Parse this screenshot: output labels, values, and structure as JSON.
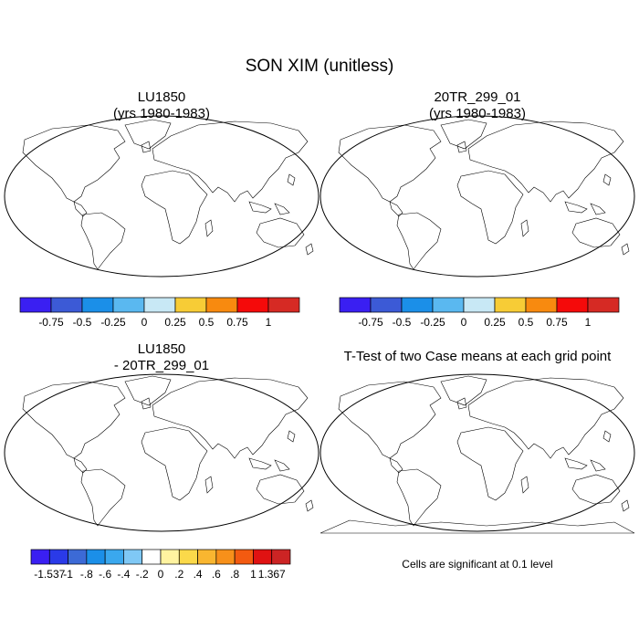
{
  "figure": {
    "main_title": "SON XIM (unitless)",
    "panels": [
      {
        "id": "lu1850",
        "title_line1": "LU1850",
        "title_line2": "(yrs 1980-1983)"
      },
      {
        "id": "20tr",
        "title_line1": "20TR_299_01",
        "title_line2": "(yrs 1980-1983)"
      },
      {
        "id": "diff",
        "title_line1": "LU1850",
        "title_line2": "- 20TR_299_01"
      },
      {
        "id": "ttest",
        "title_line1": "T-Test of two Case means at each grid point",
        "title_line2": ""
      }
    ],
    "colorbar_top": {
      "colors": [
        "#3a1ff2",
        "#3c5ad6",
        "#1b8fe8",
        "#5ab8f0",
        "#c8e8f5",
        "#f7cc36",
        "#f88a0f",
        "#f50a0a",
        "#d62a24"
      ],
      "labels": [
        "-0.75",
        "-0.5",
        "-0.25",
        "0",
        "0.25",
        "0.5",
        "0.75",
        "1"
      ]
    },
    "colorbar_diff": {
      "colors": [
        "#3a1ff2",
        "#2a3ae8",
        "#3c6ad6",
        "#1b8fe8",
        "#3aa8ee",
        "#7fc8f5",
        "#ffffff",
        "#fff3a0",
        "#fbd94a",
        "#f9b630",
        "#f7901a",
        "#f35a10",
        "#e01212",
        "#cc2424"
      ],
      "labels": [
        "-1.537",
        "-1",
        "-.8",
        "-.6",
        "-.4",
        "-.2",
        "0",
        ".2",
        ".4",
        ".6",
        ".8",
        "1",
        "1.367"
      ]
    },
    "significance_note": "Cells are significant at 0.1 level",
    "significance_color": "#ee0000"
  }
}
